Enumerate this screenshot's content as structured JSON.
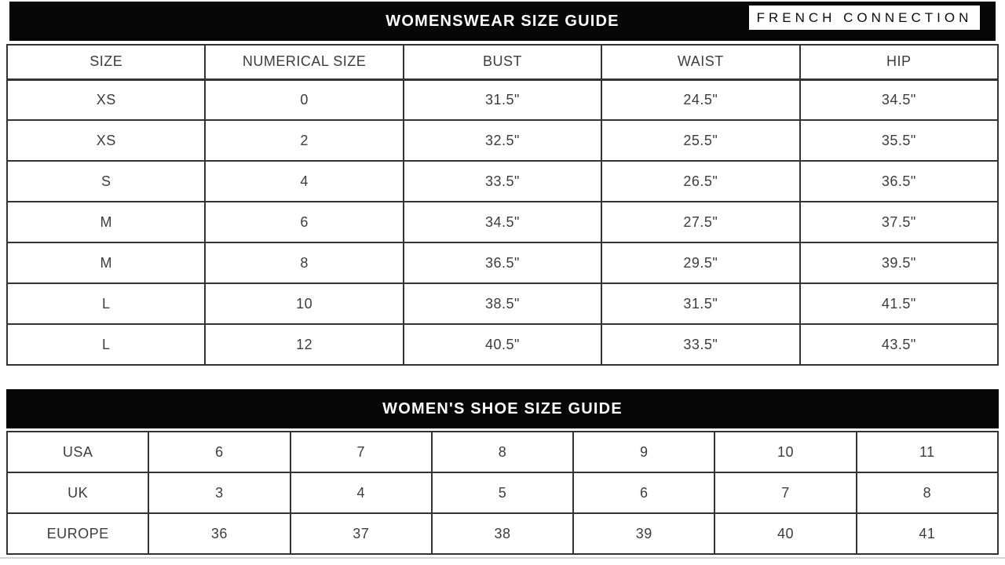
{
  "brand": "FRENCH CONNECTION",
  "womenswear": {
    "title": "WOMENSWEAR SIZE GUIDE",
    "columns": [
      "SIZE",
      "NUMERICAL SIZE",
      "BUST",
      "WAIST",
      "HIP"
    ],
    "rows": [
      [
        "XS",
        "0",
        "31.5\"",
        "24.5\"",
        "34.5\""
      ],
      [
        "XS",
        "2",
        "32.5\"",
        "25.5\"",
        "35.5\""
      ],
      [
        "S",
        "4",
        "33.5\"",
        "26.5\"",
        "36.5\""
      ],
      [
        "M",
        "6",
        "34.5\"",
        "27.5\"",
        "37.5\""
      ],
      [
        "M",
        "8",
        "36.5\"",
        "29.5\"",
        "39.5\""
      ],
      [
        "L",
        "10",
        "38.5\"",
        "31.5\"",
        "41.5\""
      ],
      [
        "L",
        "12",
        "40.5\"",
        "33.5\"",
        "43.5\""
      ]
    ]
  },
  "shoes": {
    "title": "WOMEN'S SHOE SIZE GUIDE",
    "rows": [
      {
        "label": "USA",
        "values": [
          "6",
          "7",
          "8",
          "9",
          "10",
          "11"
        ]
      },
      {
        "label": "UK",
        "values": [
          "3",
          "4",
          "5",
          "6",
          "7",
          "8"
        ]
      },
      {
        "label": "EUROPE",
        "values": [
          "36",
          "37",
          "38",
          "39",
          "40",
          "41"
        ]
      }
    ]
  },
  "colors": {
    "banner_bg": "#070707",
    "banner_text": "#ffffff",
    "table_border": "#333333",
    "cell_text": "#3d3d3d",
    "logo_bg": "#ffffff",
    "logo_text": "#0d0d0d"
  }
}
